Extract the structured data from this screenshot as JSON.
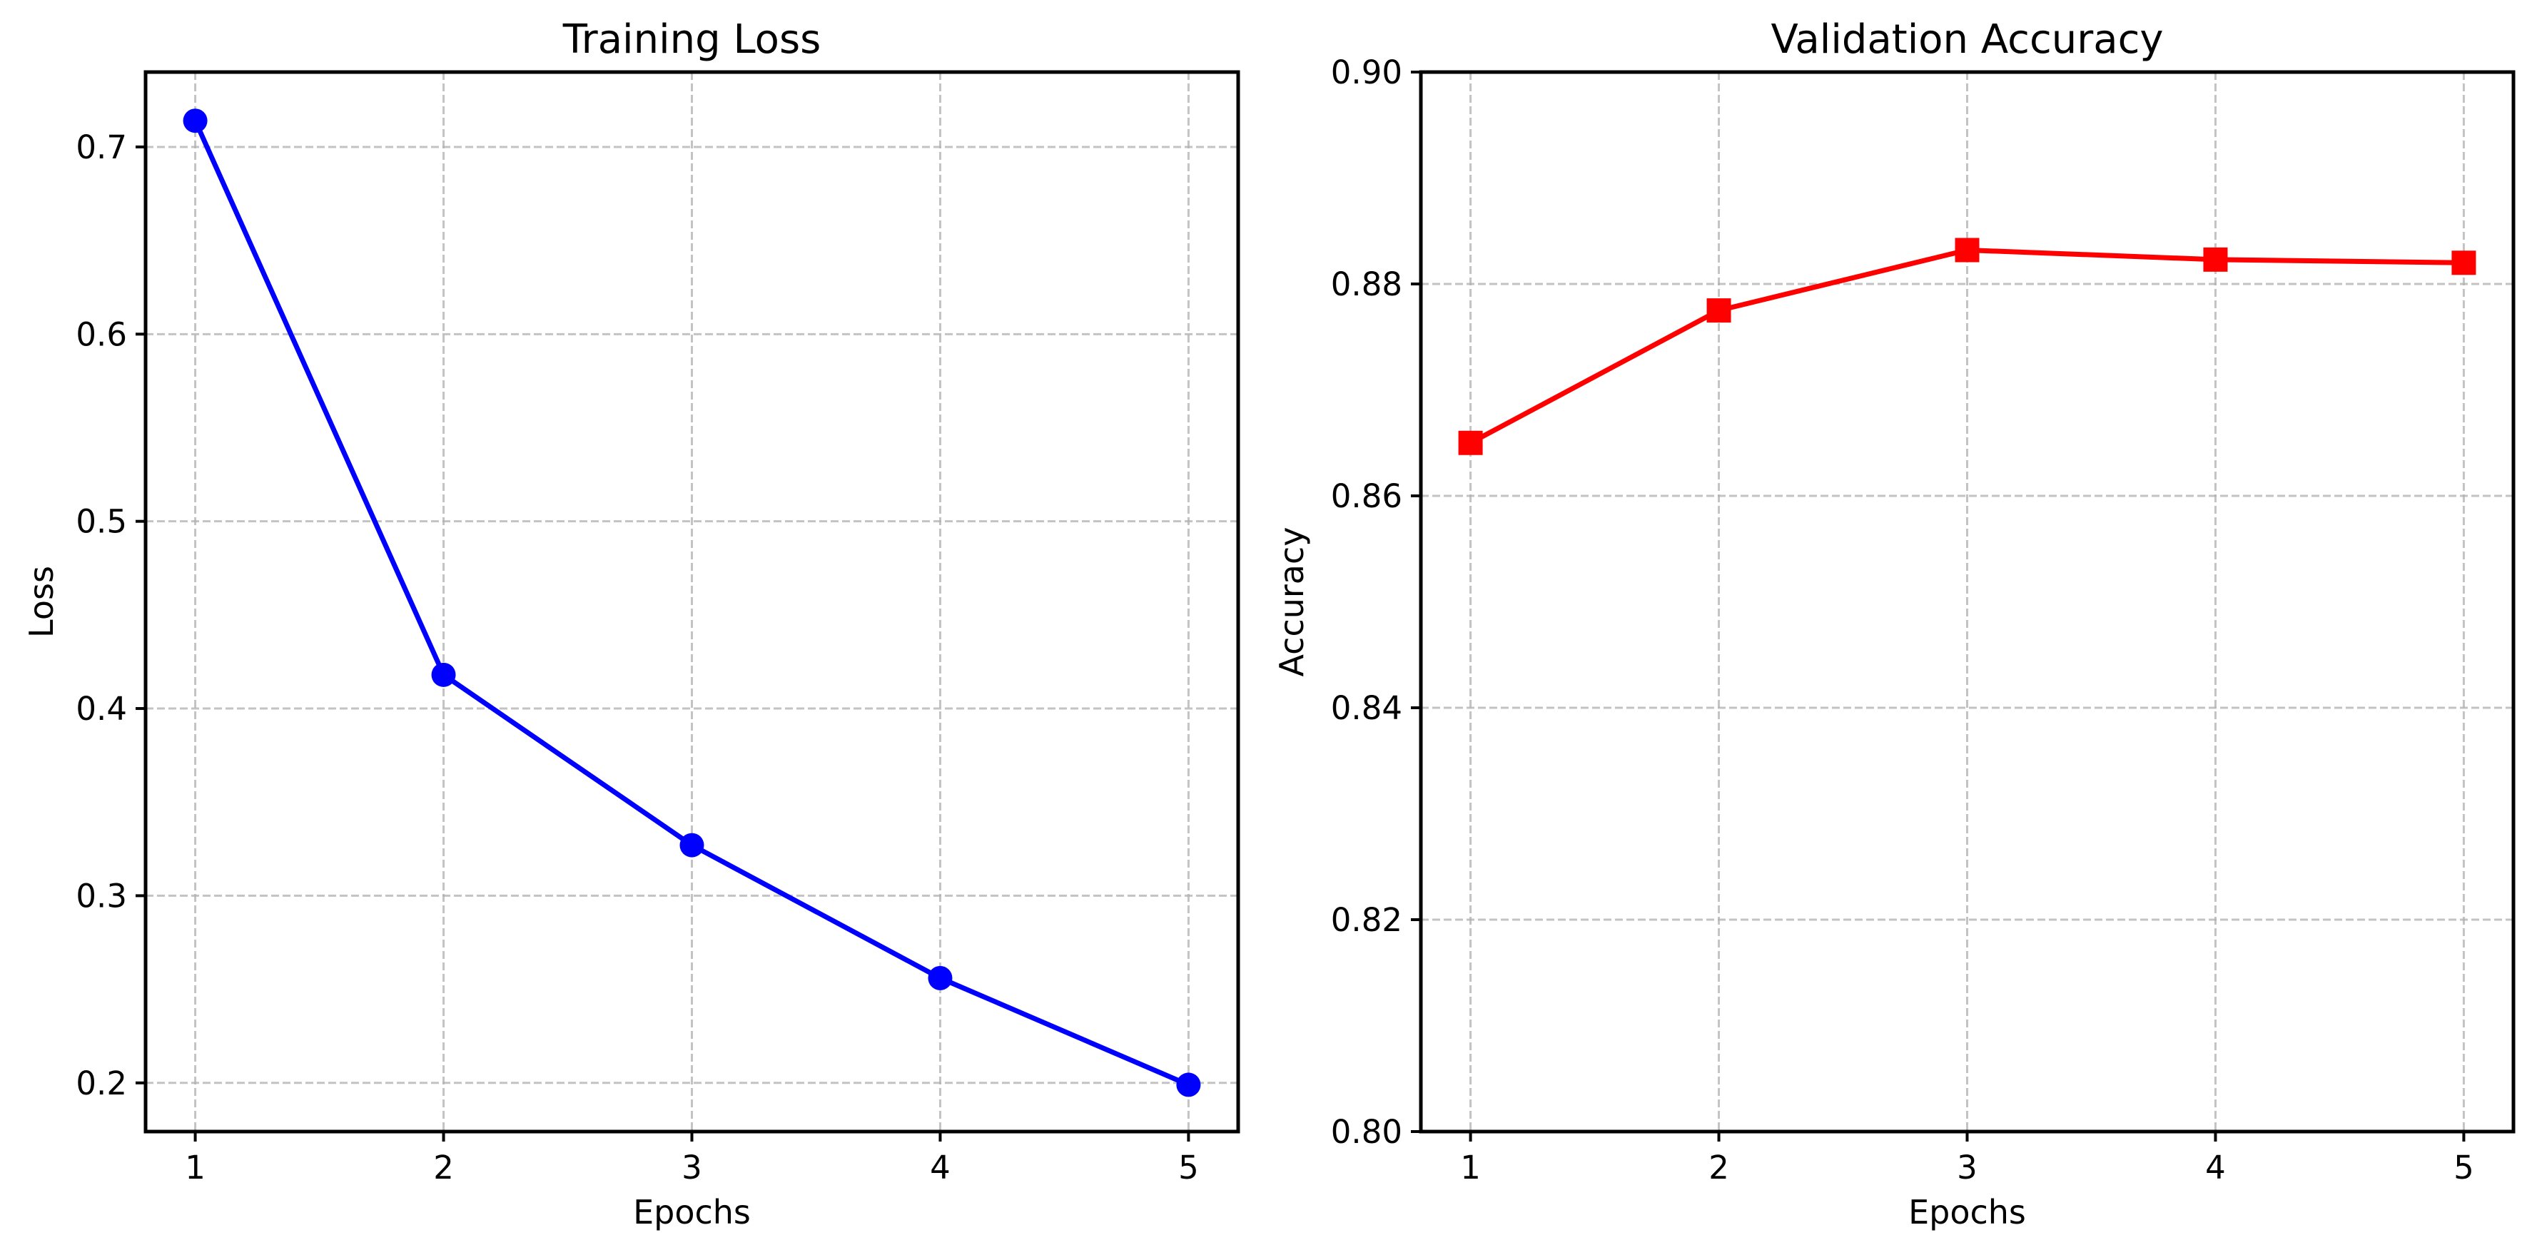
{
  "chart_data": [
    {
      "type": "line",
      "title": "Training Loss",
      "xlabel": "Epochs",
      "ylabel": "Loss",
      "x": [
        1,
        2,
        3,
        4,
        5
      ],
      "xticks": [
        "1",
        "2",
        "3",
        "4",
        "5"
      ],
      "xlim": [
        0.8,
        5.2
      ],
      "ylim": [
        0.174,
        0.74
      ],
      "yticks": [
        "0.2",
        "0.3",
        "0.4",
        "0.5",
        "0.6",
        "0.7"
      ],
      "ytick_values": [
        0.2,
        0.3,
        0.4,
        0.5,
        0.6,
        0.7
      ],
      "grid": true,
      "series": [
        {
          "values": [
            0.714,
            0.418,
            0.327,
            0.256,
            0.199
          ],
          "color": "#0000ff",
          "marker": "circle"
        }
      ]
    },
    {
      "type": "line",
      "title": "Validation Accuracy",
      "xlabel": "Epochs",
      "ylabel": "Accuracy",
      "x": [
        1,
        2,
        3,
        4,
        5
      ],
      "xticks": [
        "1",
        "2",
        "3",
        "4",
        "5"
      ],
      "xlim": [
        0.8,
        5.2
      ],
      "ylim": [
        0.8,
        0.9
      ],
      "yticks": [
        "0.80",
        "0.82",
        "0.84",
        "0.86",
        "0.88",
        "0.90"
      ],
      "ytick_values": [
        0.8,
        0.82,
        0.84,
        0.86,
        0.88,
        0.9
      ],
      "grid": true,
      "series": [
        {
          "values": [
            0.865,
            0.8775,
            0.8832,
            0.8823,
            0.882
          ],
          "color": "#ff0000",
          "marker": "square"
        }
      ]
    }
  ]
}
